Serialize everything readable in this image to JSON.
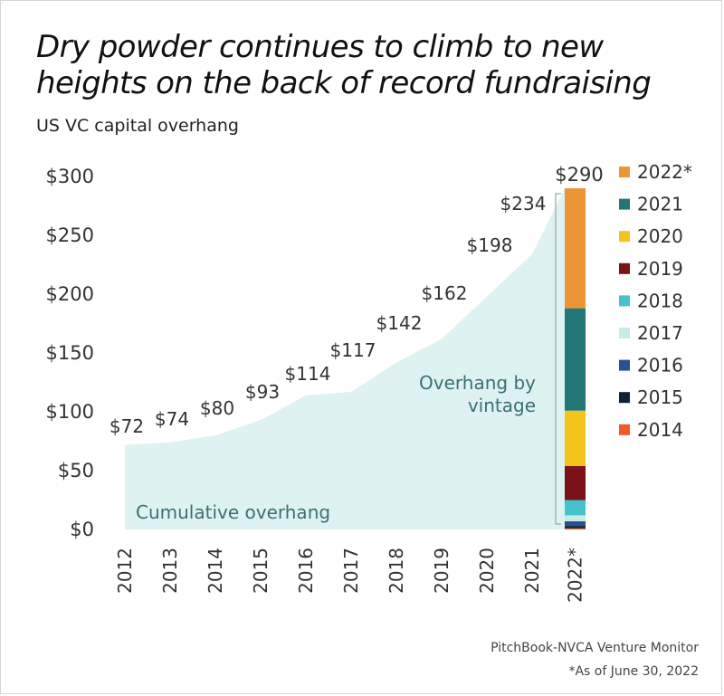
{
  "title": "Dry powder continues to climb to new heights on the back of record fundraising",
  "subtitle": "US VC capital overhang",
  "source": "PitchBook-NVCA Venture Monitor",
  "note": "*As of June 30, 2022",
  "chart_data": {
    "type": "area",
    "y_ticks": [
      "$0",
      "$50",
      "$100",
      "$150",
      "$200",
      "$250",
      "$300"
    ],
    "ylim": [
      0,
      300
    ],
    "categories": [
      "2012",
      "2013",
      "2014",
      "2015",
      "2016",
      "2017",
      "2018",
      "2019",
      "2020",
      "2021",
      "2022*"
    ],
    "cumulative_overhang": {
      "name": "Cumulative overhang",
      "color": "#def3f1",
      "values": [
        72,
        74,
        80,
        93,
        114,
        117,
        142,
        162,
        198,
        234,
        290
      ],
      "labels": [
        "$72",
        "$74",
        "$80",
        "$93",
        "$114",
        "$117",
        "$142",
        "$162",
        "$198",
        "$234",
        "$290"
      ]
    },
    "stacked_bar": {
      "category": "2022*",
      "total_label": "$290",
      "annotation": "Overhang by vintage",
      "segments": [
        {
          "name": "2014",
          "value": 1,
          "color": "#ef5a28"
        },
        {
          "name": "2015",
          "value": 2,
          "color": "#0f2235"
        },
        {
          "name": "2016",
          "value": 4,
          "color": "#28518f"
        },
        {
          "name": "2017",
          "value": 5,
          "color": "#c7ece7"
        },
        {
          "name": "2018",
          "value": 13,
          "color": "#44c3cd"
        },
        {
          "name": "2019",
          "value": 29,
          "color": "#7a1217"
        },
        {
          "name": "2020",
          "value": 47,
          "color": "#f3c51c"
        },
        {
          "name": "2021",
          "value": 87,
          "color": "#237676"
        },
        {
          "name": "2022*",
          "value": 102,
          "color": "#ec9537"
        }
      ]
    },
    "legend": {
      "placement": "right",
      "items": [
        {
          "name": "2022*",
          "color": "#ec9537"
        },
        {
          "name": "2021",
          "color": "#237676"
        },
        {
          "name": "2020",
          "color": "#f3c51c"
        },
        {
          "name": "2019",
          "color": "#7a1217"
        },
        {
          "name": "2018",
          "color": "#44c3cd"
        },
        {
          "name": "2017",
          "color": "#c7ece7"
        },
        {
          "name": "2016",
          "color": "#28518f"
        },
        {
          "name": "2015",
          "color": "#0f2235"
        },
        {
          "name": "2014",
          "color": "#ef5a28"
        }
      ]
    },
    "grid": false
  }
}
